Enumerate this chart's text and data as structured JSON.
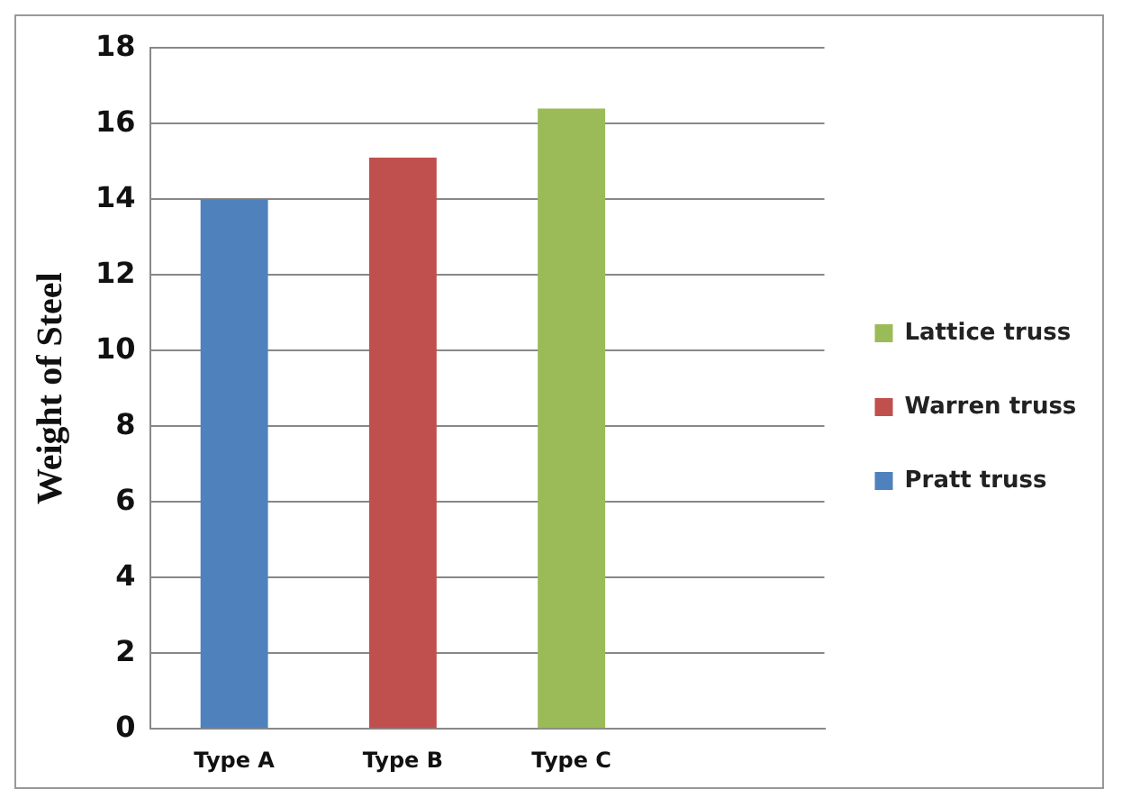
{
  "chart_data": {
    "type": "bar",
    "ylabel": "Weight of Steel",
    "categories": [
      "Type A",
      "Type B",
      "Type C",
      null
    ],
    "stacked": true,
    "series": [
      {
        "name": "Pratt truss",
        "color": "#4f81bd",
        "values": [
          14,
          null,
          null,
          null
        ]
      },
      {
        "name": "Warren truss",
        "color": "#c0504d",
        "values": [
          null,
          15.1,
          null,
          null
        ]
      },
      {
        "name": "Lattice truss",
        "color": "#9bbb59",
        "values": [
          null,
          null,
          16.4,
          null
        ]
      }
    ],
    "ylim": [
      0,
      18
    ],
    "yticks": [
      0,
      2,
      4,
      6,
      8,
      10,
      12,
      14,
      16,
      18
    ],
    "grid": "y",
    "legend": "right"
  }
}
